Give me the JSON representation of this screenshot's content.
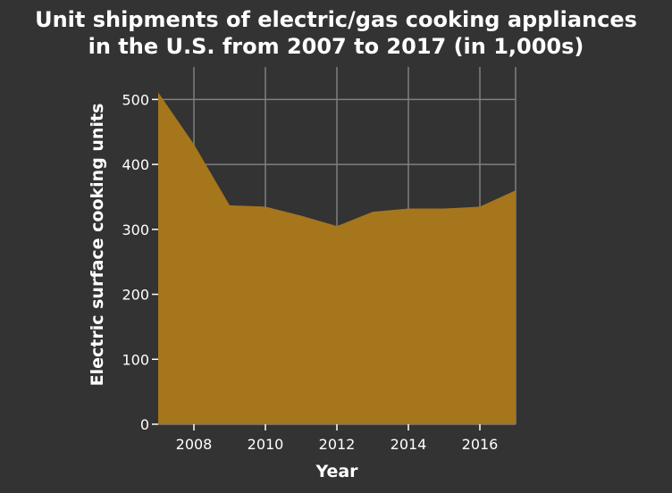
{
  "chart_data": {
    "type": "area",
    "title_lines": [
      "Unit shipments of electric/gas cooking appliances",
      "in the U.S. from 2007 to 2017 (in 1,000s)"
    ],
    "xlabel": "Year",
    "ylabel": "Electric surface cooking units",
    "xlim": [
      2007,
      2017
    ],
    "ylim": [
      0,
      550
    ],
    "x_ticks": [
      2008,
      2010,
      2012,
      2014,
      2016
    ],
    "y_ticks": [
      0,
      100,
      200,
      300,
      400,
      500
    ],
    "grid": true,
    "series": [
      {
        "x": [
          2007,
          2008,
          2009,
          2010,
          2011,
          2012,
          2013,
          2014,
          2015,
          2016,
          2017
        ],
        "values": [
          511,
          431,
          337,
          335,
          321,
          305,
          327,
          332,
          332,
          335,
          360
        ]
      }
    ],
    "colors": {
      "background": "#333333",
      "fill": "#a6761d",
      "text": "#ffffff",
      "grid": "#808080"
    }
  }
}
